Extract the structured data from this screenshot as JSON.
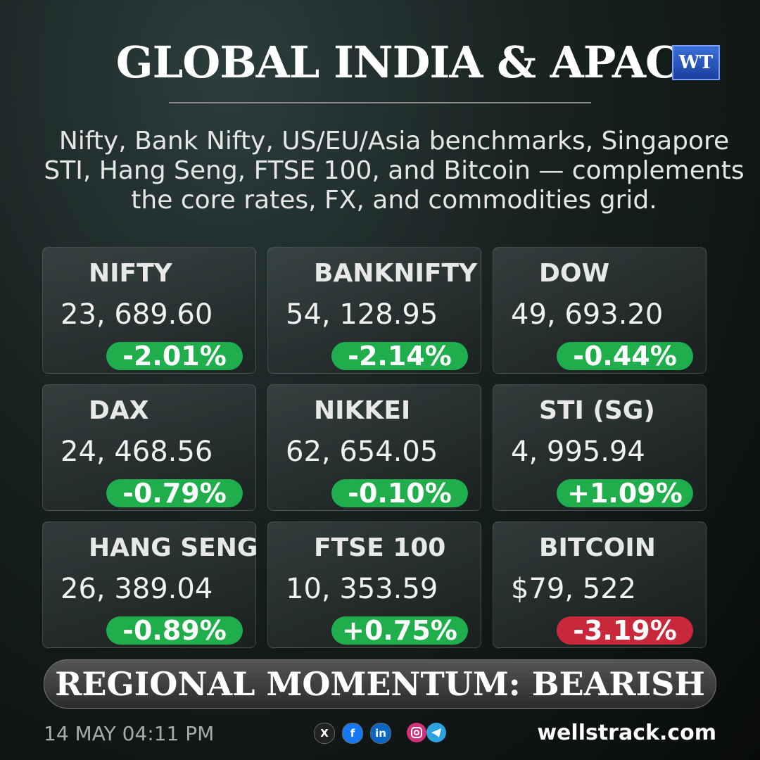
{
  "header": {
    "title": "GLOBAL  INDIA & APAC",
    "logo": "WT",
    "subtitle_lines": [
      "Nifty, Bank Nifty, US/EU/Asia benchmarks, Singapore",
      "STI, Hang Seng, FTSE 100, and Bitcoin — complements",
      "the core rates, FX, and commodities grid."
    ]
  },
  "cards": [
    {
      "name": "NIFTY",
      "value": "23, 689.60",
      "change": "-2.01%",
      "color": "#1fae4b"
    },
    {
      "name": "BANKNIFTY",
      "value": "54, 128.95",
      "change": "-2.14%",
      "color": "#1fae4b"
    },
    {
      "name": "DOW",
      "value": "49, 693.20",
      "change": "-0.44%",
      "color": "#1fae4b"
    },
    {
      "name": "DAX",
      "value": "24, 468.56",
      "change": "-0.79%",
      "color": "#1fae4b"
    },
    {
      "name": "NIKKEI",
      "value": "62, 654.05",
      "change": "-0.10%",
      "color": "#1fae4b"
    },
    {
      "name": "STI (SG)",
      "value": "4, 995.94",
      "change": "+1.09%",
      "color": "#1fae4b"
    },
    {
      "name": "HANG SENG",
      "value": "26, 389.04",
      "change": "-0.89%",
      "color": "#1fae4b"
    },
    {
      "name": "FTSE 100",
      "value": "10, 353.59",
      "change": "+0.75%",
      "color": "#1fae4b"
    },
    {
      "name": "BITCOIN",
      "value": "$79, 522",
      "change": "-3.19%",
      "color": "#c8283a"
    }
  ],
  "banner": "REGIONAL MOMENTUM: BEARISH",
  "footer": {
    "timestamp": "14 MAY 04:11 PM",
    "site": "wellstrack.com",
    "social": [
      "X",
      "f",
      "in"
    ]
  }
}
